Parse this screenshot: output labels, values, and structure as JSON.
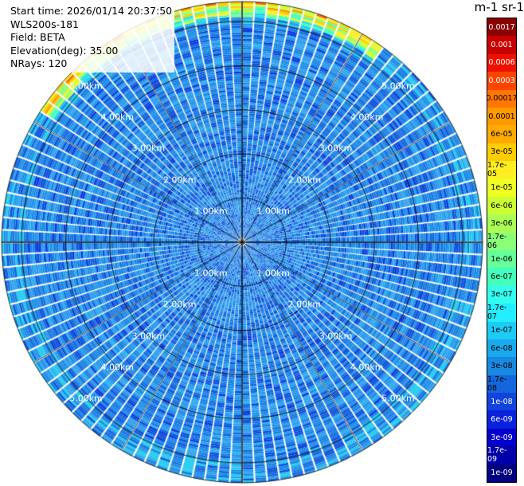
{
  "info": {
    "start_time": "Start time: 2026/01/14 20:37:50",
    "instrument": "WLS200s-181",
    "field": "Field: BETA",
    "elevation": "Elevation(deg): 35.00",
    "nrays": "NRays: 120"
  },
  "unit_title": "m-1 sr-1",
  "colorbar": {
    "labels": [
      "0.0017",
      "0.001",
      "0.0006",
      "0.0003",
      "0.00017",
      "0.0001",
      "6e-05",
      "3e-05",
      "1.7e-05",
      "1e-05",
      "6e-06",
      "3e-06",
      "1.7e-06",
      "1e-06",
      "6e-07",
      "3e-07",
      "1.7e-07",
      "1e-07",
      "6e-08",
      "3e-08",
      "1.7e-08",
      "1e-08",
      "6e-09",
      "3e-09",
      "1.7e-09",
      "1e-09"
    ],
    "colors": [
      "#8b0000",
      "#c80000",
      "#ee1100",
      "#ff4400",
      "#ff7700",
      "#ff9900",
      "#ffaa00",
      "#ffcc00",
      "#ffee22",
      "#eeff22",
      "#ccff33",
      "#aaff55",
      "#88ff77",
      "#66ff99",
      "#44ffbb",
      "#33ffee",
      "#22eeff",
      "#1bccf5",
      "#19aaee",
      "#1888e0",
      "#1466dd",
      "#1044dd",
      "#0a22dd",
      "#0500cc",
      "#0000aa",
      "#000080"
    ],
    "light_text_indices": [
      0,
      1,
      2,
      3,
      21,
      22,
      23,
      24,
      25
    ]
  },
  "range_rings": {
    "labels": [
      "1.00km",
      "2.00km",
      "3.00km",
      "4.00km",
      "5.00km"
    ],
    "values_km": [
      1,
      2,
      3,
      4,
      5
    ]
  },
  "scan": {
    "nrays": 120,
    "max_range_km": 5.45
  }
}
